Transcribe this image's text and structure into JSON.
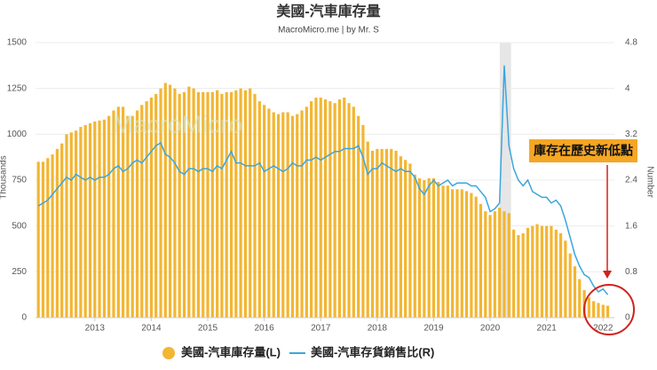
{
  "chart_data": {
    "type": "combo",
    "title": "美國-汽車庫存量",
    "subtitle": "MacroMicro.me | by Mr. S",
    "watermark": "MacroMicro",
    "y_label": "Thousands",
    "y2_label": "Number",
    "annotation": "庫存在歷史新低點",
    "x": [
      2012,
      2012.083,
      2012.167,
      2012.25,
      2012.333,
      2012.417,
      2012.5,
      2012.583,
      2012.667,
      2012.75,
      2012.833,
      2012.917,
      2013,
      2013.083,
      2013.167,
      2013.25,
      2013.333,
      2013.417,
      2013.5,
      2013.583,
      2013.667,
      2013.75,
      2013.833,
      2013.917,
      2014,
      2014.083,
      2014.167,
      2014.25,
      2014.333,
      2014.417,
      2014.5,
      2014.583,
      2014.667,
      2014.75,
      2014.833,
      2014.917,
      2015,
      2015.083,
      2015.167,
      2015.25,
      2015.333,
      2015.417,
      2015.5,
      2015.583,
      2015.667,
      2015.75,
      2015.833,
      2015.917,
      2016,
      2016.083,
      2016.167,
      2016.25,
      2016.333,
      2016.417,
      2016.5,
      2016.583,
      2016.667,
      2016.75,
      2016.833,
      2016.917,
      2017,
      2017.083,
      2017.167,
      2017.25,
      2017.333,
      2017.417,
      2017.5,
      2017.583,
      2017.667,
      2017.75,
      2017.833,
      2017.917,
      2018,
      2018.083,
      2018.167,
      2018.25,
      2018.333,
      2018.417,
      2018.5,
      2018.583,
      2018.667,
      2018.75,
      2018.833,
      2018.917,
      2019,
      2019.083,
      2019.167,
      2019.25,
      2019.333,
      2019.417,
      2019.5,
      2019.583,
      2019.667,
      2019.75,
      2019.833,
      2019.917,
      2020,
      2020.083,
      2020.167,
      2020.25,
      2020.333,
      2020.417,
      2020.5,
      2020.583,
      2020.667,
      2020.75,
      2020.833,
      2020.917,
      2021,
      2021.083,
      2021.167,
      2021.25,
      2021.333,
      2021.417,
      2021.5,
      2021.583,
      2021.667,
      2021.75,
      2021.833,
      2021.917,
      2022,
      2022.083
    ],
    "series": [
      {
        "name": "美國-汽車庫存量(L)",
        "type": "bar",
        "color": "#f3b632",
        "values": [
          850,
          850,
          870,
          890,
          920,
          950,
          1000,
          1010,
          1020,
          1040,
          1050,
          1060,
          1070,
          1075,
          1080,
          1100,
          1130,
          1150,
          1150,
          1100,
          1100,
          1130,
          1160,
          1180,
          1200,
          1220,
          1250,
          1280,
          1270,
          1250,
          1220,
          1230,
          1260,
          1250,
          1230,
          1230,
          1230,
          1230,
          1240,
          1220,
          1230,
          1230,
          1240,
          1250,
          1240,
          1250,
          1220,
          1180,
          1160,
          1140,
          1120,
          1110,
          1120,
          1120,
          1100,
          1110,
          1130,
          1150,
          1180,
          1200,
          1200,
          1190,
          1180,
          1170,
          1190,
          1200,
          1170,
          1150,
          1100,
          1050,
          960,
          910,
          920,
          920,
          920,
          920,
          910,
          880,
          860,
          840,
          780,
          760,
          750,
          760,
          760,
          740,
          720,
          720,
          700,
          700,
          700,
          690,
          680,
          660,
          620,
          580,
          560,
          580,
          600,
          580,
          570,
          480,
          450,
          460,
          490,
          500,
          510,
          500,
          500,
          500,
          480,
          460,
          420,
          350,
          280,
          210,
          150,
          110,
          90,
          80,
          70,
          65
        ]
      },
      {
        "name": "美國-汽車存貨銷售比(R)",
        "type": "line",
        "axis": "y2",
        "color": "#3aa6dd",
        "values": [
          1.95,
          2.0,
          2.05,
          2.15,
          2.25,
          2.35,
          2.45,
          2.4,
          2.5,
          2.45,
          2.4,
          2.45,
          2.4,
          2.45,
          2.45,
          2.5,
          2.6,
          2.65,
          2.55,
          2.6,
          2.7,
          2.75,
          2.7,
          2.8,
          2.9,
          3.0,
          3.05,
          2.85,
          2.8,
          2.7,
          2.55,
          2.5,
          2.6,
          2.6,
          2.55,
          2.6,
          2.6,
          2.55,
          2.65,
          2.6,
          2.75,
          2.9,
          2.7,
          2.7,
          2.65,
          2.65,
          2.65,
          2.7,
          2.55,
          2.6,
          2.65,
          2.6,
          2.55,
          2.6,
          2.7,
          2.65,
          2.65,
          2.75,
          2.75,
          2.8,
          2.75,
          2.8,
          2.85,
          2.9,
          2.9,
          2.95,
          2.95,
          2.95,
          3.0,
          2.8,
          2.5,
          2.6,
          2.6,
          2.7,
          2.65,
          2.6,
          2.55,
          2.6,
          2.55,
          2.55,
          2.45,
          2.25,
          2.15,
          2.3,
          2.4,
          2.3,
          2.35,
          2.4,
          2.3,
          2.35,
          2.35,
          2.35,
          2.3,
          2.3,
          2.2,
          2.1,
          1.85,
          1.9,
          2.0,
          4.4,
          3.0,
          2.6,
          2.4,
          2.3,
          2.4,
          2.2,
          2.15,
          2.1,
          2.1,
          2.0,
          2.05,
          1.95,
          1.7,
          1.4,
          1.1,
          0.9,
          0.75,
          0.7,
          0.55,
          0.45,
          0.5,
          0.4
        ]
      }
    ],
    "shaded_range": [
      2020.17,
      2020.37
    ],
    "xlim": [
      2011.95,
      2022.2
    ],
    "xticks": [
      2013,
      2014,
      2015,
      2016,
      2017,
      2018,
      2019,
      2020,
      2021,
      2022
    ],
    "ylim": [
      0,
      1500
    ],
    "yticks": [
      0,
      250,
      500,
      750,
      1000,
      1250,
      1500
    ],
    "y2lim": [
      0,
      4.8
    ],
    "y2ticks": [
      0,
      0.8,
      1.6,
      2.4,
      3.2,
      4,
      4.8
    ],
    "grid": true,
    "legend": "bottom"
  }
}
